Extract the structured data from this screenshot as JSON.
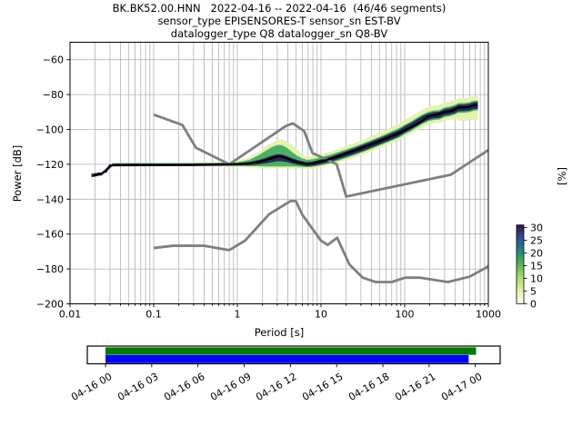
{
  "title": {
    "line1": "BK.BK52.00.HNN   2022-04-16 -- 2022-04-16  (46/46 segments)",
    "line2": "sensor_type EPISENSORES-T sensor_sn EST-BV",
    "line3": "datalogger_type Q8 datalogger_sn Q8-BV"
  },
  "axes": {
    "xlabel": "Period [s]",
    "ylabel": "Power [dB]",
    "right_label": "[%]",
    "x_ticks": [
      {
        "v": 0.01,
        "label": "0.01"
      },
      {
        "v": 0.1,
        "label": "0.1"
      },
      {
        "v": 1,
        "label": "1"
      },
      {
        "v": 10,
        "label": "10"
      },
      {
        "v": 100,
        "label": "100"
      },
      {
        "v": 1000,
        "label": "1000"
      }
    ],
    "y_ticks": [
      {
        "v": -60,
        "label": "−60"
      },
      {
        "v": -80,
        "label": "−80"
      },
      {
        "v": -100,
        "label": "−100"
      },
      {
        "v": -120,
        "label": "−120"
      },
      {
        "v": -140,
        "label": "−140"
      },
      {
        "v": -160,
        "label": "−160"
      },
      {
        "v": -180,
        "label": "−180"
      },
      {
        "v": -200,
        "label": "−200"
      }
    ],
    "xlim": [
      0.01,
      1000
    ],
    "ylim": [
      -200,
      -50
    ],
    "grid": true
  },
  "colorbar": {
    "ticks": [
      0,
      5,
      10,
      15,
      20,
      25,
      30
    ],
    "vmax": 31,
    "stops": [
      {
        "v": 0.0,
        "color": "#ffffff"
      },
      {
        "v": 2.0,
        "color": "#f6fad1"
      },
      {
        "v": 5.0,
        "color": "#e1f3ae"
      },
      {
        "v": 8.0,
        "color": "#c3e687"
      },
      {
        "v": 11.0,
        "color": "#9ed76f"
      },
      {
        "v": 14.0,
        "color": "#6fc05e"
      },
      {
        "v": 17.0,
        "color": "#41a85f"
      },
      {
        "v": 20.0,
        "color": "#2b8d74"
      },
      {
        "v": 23.0,
        "color": "#2a6f8e"
      },
      {
        "v": 26.0,
        "color": "#31508e"
      },
      {
        "v": 28.5,
        "color": "#343066"
      },
      {
        "v": 31.0,
        "color": "#35173f"
      }
    ]
  },
  "chart_data": {
    "type": "heatmap",
    "subtype": "ppsd_probability_density_with_noise_models",
    "title": "BK.BK52.00.HNN 2022-04-16 -- 2022-04-16 (46/46 segments)",
    "xlabel": "Period [s]",
    "ylabel": "Power [dB]",
    "zlabel": "[%]",
    "xlim": [
      0.01,
      1000
    ],
    "ylim": [
      -200,
      -50
    ],
    "zlim": [
      0,
      31
    ],
    "mode_line": [
      [
        0.019,
        -126.5
      ],
      [
        0.0205,
        -126.1
      ],
      [
        0.022,
        -125.3
      ],
      [
        0.0235,
        -125.7
      ],
      [
        0.025,
        -124.6
      ],
      [
        0.027,
        -124.1
      ],
      [
        0.0285,
        -122.3
      ],
      [
        0.03,
        -120.6
      ],
      [
        0.033,
        -120.4
      ],
      [
        0.05,
        -120.3
      ],
      [
        0.08,
        -120.3
      ],
      [
        0.13,
        -120.3
      ],
      [
        0.22,
        -120.3
      ],
      [
        0.38,
        -120.2
      ],
      [
        0.65,
        -120.1
      ],
      [
        1.0,
        -119.9
      ],
      [
        1.35,
        -119.5
      ],
      [
        1.75,
        -118.7
      ],
      [
        2.15,
        -117.7
      ],
      [
        2.55,
        -116.6
      ],
      [
        2.95,
        -115.6
      ],
      [
        3.35,
        -115.6
      ],
      [
        3.85,
        -116.4
      ],
      [
        4.4,
        -117.6
      ],
      [
        5.1,
        -118.6
      ],
      [
        5.9,
        -119.3
      ],
      [
        6.7,
        -119.8
      ],
      [
        7.7,
        -119.6
      ],
      [
        8.8,
        -119.0
      ],
      [
        10.2,
        -118.2
      ],
      [
        12.2,
        -117.2
      ],
      [
        14.5,
        -116.1
      ],
      [
        17.5,
        -114.8
      ],
      [
        21,
        -113.4
      ],
      [
        25.5,
        -112.0
      ],
      [
        31,
        -110.5
      ],
      [
        37,
        -109.1
      ],
      [
        45,
        -107.6
      ],
      [
        54,
        -106.1
      ],
      [
        65,
        -104.5
      ],
      [
        78,
        -102.9
      ],
      [
        94,
        -101.1
      ],
      [
        112,
        -99.3
      ],
      [
        135,
        -97.3
      ],
      [
        160,
        -95.3
      ],
      [
        185,
        -92.8
      ],
      [
        210,
        -92.0
      ],
      [
        245,
        -91.6
      ],
      [
        285,
        -90.4
      ],
      [
        305,
        -90.0
      ],
      [
        340,
        -89.7
      ],
      [
        375,
        -89.2
      ],
      [
        405,
        -88.4
      ],
      [
        425,
        -87.7
      ],
      [
        445,
        -87.4
      ],
      [
        510,
        -87.4
      ],
      [
        580,
        -87.2
      ],
      [
        625,
        -86.6
      ],
      [
        680,
        -86.2
      ],
      [
        745,
        -86.0
      ]
    ],
    "density_bands": [
      {
        "name": "outer-low-probability",
        "color": "#e3f2b2",
        "points": [
          [
            0.3,
            -121.2,
            -119.0
          ],
          [
            0.7,
            -121.3,
            -118.7
          ],
          [
            1.0,
            -121.6,
            -117.9
          ],
          [
            1.4,
            -121.8,
            -116.1
          ],
          [
            1.8,
            -122.0,
            -112.6
          ],
          [
            2.2,
            -122.2,
            -109.6
          ],
          [
            2.6,
            -122.3,
            -107.4
          ],
          [
            3.0,
            -122.3,
            -106.1
          ],
          [
            3.4,
            -122.3,
            -105.6
          ],
          [
            3.9,
            -122.3,
            -106.7
          ],
          [
            4.5,
            -122.3,
            -108.9
          ],
          [
            5.2,
            -122.4,
            -111.6
          ],
          [
            6.0,
            -122.5,
            -114.1
          ],
          [
            6.8,
            -122.6,
            -115.5
          ],
          [
            7.8,
            -122.4,
            -115.3
          ],
          [
            9.0,
            -121.9,
            -114.7
          ],
          [
            10.5,
            -121.3,
            -113.9
          ],
          [
            12.5,
            -120.5,
            -112.9
          ],
          [
            15,
            -119.4,
            -111.6
          ],
          [
            18,
            -118.3,
            -110.3
          ],
          [
            22,
            -117.0,
            -108.8
          ],
          [
            27,
            -115.6,
            -107.2
          ],
          [
            33,
            -114.1,
            -105.6
          ],
          [
            40,
            -112.6,
            -103.9
          ],
          [
            48,
            -111.1,
            -102.3
          ],
          [
            58,
            -109.5,
            -100.5
          ],
          [
            70,
            -107.9,
            -98.7
          ],
          [
            85,
            -106.2,
            -96.8
          ],
          [
            100,
            -104.3,
            -94.5
          ],
          [
            120,
            -102.4,
            -92.4
          ],
          [
            140,
            -100.5,
            -90.5
          ],
          [
            165,
            -98.6,
            -88.5
          ],
          [
            190,
            -97.3,
            -87.1
          ],
          [
            220,
            -96.5,
            -86.3
          ],
          [
            260,
            -96.2,
            -86.0
          ],
          [
            300,
            -94.9,
            -84.5
          ],
          [
            340,
            -94.5,
            -84.1
          ],
          [
            400,
            -94.0,
            -83.0
          ],
          [
            440,
            -95.0,
            -82.0
          ],
          [
            520,
            -95.0,
            -81.9
          ],
          [
            600,
            -94.8,
            -81.6
          ],
          [
            640,
            -94.6,
            -81.0
          ],
          [
            700,
            -94.5,
            -80.7
          ],
          [
            750,
            -94.4,
            -80.6
          ]
        ]
      },
      {
        "name": "mid-probability",
        "color": "#4fae63",
        "points": [
          [
            0.032,
            -120.9,
            -119.3
          ],
          [
            0.3,
            -120.9,
            -119.3
          ],
          [
            0.7,
            -120.9,
            -119.1
          ],
          [
            1.0,
            -120.9,
            -118.9
          ],
          [
            1.4,
            -121.0,
            -117.4
          ],
          [
            1.8,
            -121.1,
            -114.8
          ],
          [
            2.2,
            -121.2,
            -112.1
          ],
          [
            2.6,
            -121.2,
            -110.1
          ],
          [
            3.0,
            -121.2,
            -108.9
          ],
          [
            3.4,
            -121.2,
            -109.0
          ],
          [
            3.9,
            -121.2,
            -110.4
          ],
          [
            4.5,
            -121.2,
            -112.9
          ],
          [
            5.2,
            -121.3,
            -115.1
          ],
          [
            6.0,
            -121.5,
            -116.7
          ],
          [
            6.8,
            -121.6,
            -117.4
          ],
          [
            7.8,
            -121.4,
            -117.1
          ],
          [
            9.0,
            -121.0,
            -116.5
          ],
          [
            10.5,
            -120.4,
            -115.7
          ],
          [
            12.5,
            -119.5,
            -114.7
          ],
          [
            15,
            -118.3,
            -113.5
          ],
          [
            18,
            -117.1,
            -112.2
          ],
          [
            22,
            -115.7,
            -110.8
          ],
          [
            27,
            -114.2,
            -109.3
          ],
          [
            33,
            -112.7,
            -107.7
          ],
          [
            40,
            -111.1,
            -106.1
          ],
          [
            48,
            -109.6,
            -104.6
          ],
          [
            58,
            -108.0,
            -102.9
          ],
          [
            70,
            -106.4,
            -101.1
          ],
          [
            85,
            -104.7,
            -99.3
          ],
          [
            100,
            -102.8,
            -97.3
          ],
          [
            120,
            -100.8,
            -95.3
          ],
          [
            140,
            -98.8,
            -93.3
          ],
          [
            165,
            -96.8,
            -91.3
          ],
          [
            190,
            -95.4,
            -90.0
          ],
          [
            220,
            -94.6,
            -89.2
          ],
          [
            260,
            -94.3,
            -88.9
          ],
          [
            300,
            -92.9,
            -87.4
          ],
          [
            340,
            -92.5,
            -87.0
          ],
          [
            400,
            -91.5,
            -85.9
          ],
          [
            440,
            -90.5,
            -84.9
          ],
          [
            520,
            -90.4,
            -84.8
          ],
          [
            600,
            -90.1,
            -84.4
          ],
          [
            640,
            -89.5,
            -83.8
          ],
          [
            700,
            -89.2,
            -83.5
          ],
          [
            750,
            -89.1,
            -83.4
          ]
        ]
      },
      {
        "name": "high-probability-core",
        "color": "#222c54",
        "points": [
          [
            0.018,
            -127.4,
            -125.3
          ],
          [
            0.024,
            -126.3,
            -124.6
          ],
          [
            0.028,
            -123.4,
            -121.6
          ],
          [
            0.032,
            -121.2,
            -119.8
          ],
          [
            0.3,
            -121.0,
            -119.7
          ],
          [
            1.0,
            -120.7,
            -119.2
          ],
          [
            1.4,
            -120.5,
            -118.7
          ],
          [
            1.8,
            -120.0,
            -117.5
          ],
          [
            2.2,
            -119.4,
            -116.2
          ],
          [
            2.6,
            -118.8,
            -115.0
          ],
          [
            3.0,
            -118.2,
            -114.2
          ],
          [
            3.4,
            -118.2,
            -114.3
          ],
          [
            3.9,
            -118.7,
            -115.3
          ],
          [
            4.5,
            -119.5,
            -116.5
          ],
          [
            5.2,
            -120.2,
            -117.5
          ],
          [
            6.0,
            -120.7,
            -118.3
          ],
          [
            6.8,
            -121.0,
            -118.8
          ],
          [
            7.8,
            -120.8,
            -118.5
          ],
          [
            9.0,
            -120.3,
            -117.8
          ],
          [
            10.5,
            -119.6,
            -116.9
          ],
          [
            12.5,
            -118.7,
            -115.9
          ],
          [
            15,
            -117.5,
            -114.6
          ],
          [
            18,
            -116.3,
            -113.2
          ],
          [
            22,
            -114.9,
            -111.7
          ],
          [
            27,
            -113.5,
            -110.1
          ],
          [
            33,
            -112.0,
            -108.5
          ],
          [
            40,
            -110.4,
            -106.9
          ],
          [
            48,
            -108.9,
            -105.4
          ],
          [
            58,
            -107.3,
            -103.7
          ],
          [
            70,
            -105.7,
            -102.0
          ],
          [
            85,
            -104.0,
            -100.3
          ],
          [
            100,
            -101.9,
            -98.2
          ],
          [
            120,
            -99.9,
            -96.2
          ],
          [
            140,
            -97.9,
            -94.2
          ],
          [
            165,
            -95.9,
            -92.2
          ],
          [
            190,
            -94.5,
            -90.9
          ],
          [
            220,
            -93.7,
            -90.1
          ],
          [
            260,
            -93.4,
            -89.8
          ],
          [
            300,
            -92.0,
            -88.3
          ],
          [
            340,
            -91.6,
            -87.9
          ],
          [
            400,
            -90.6,
            -86.8
          ],
          [
            440,
            -89.6,
            -85.8
          ],
          [
            520,
            -89.5,
            -85.7
          ],
          [
            600,
            -89.2,
            -85.3
          ],
          [
            640,
            -88.6,
            -84.7
          ],
          [
            700,
            -88.3,
            -84.4
          ],
          [
            750,
            -88.2,
            -84.3
          ]
        ]
      }
    ],
    "noise_models": {
      "nhnm": [
        [
          0.1,
          -91.5
        ],
        [
          0.22,
          -97.4
        ],
        [
          0.32,
          -110.5
        ],
        [
          0.8,
          -120.0
        ],
        [
          3.8,
          -98.0
        ],
        [
          4.6,
          -96.5
        ],
        [
          6.3,
          -101.0
        ],
        [
          7.9,
          -113.5
        ],
        [
          15.4,
          -120.0
        ],
        [
          20,
          -138.5
        ],
        [
          354.8,
          -126.0
        ],
        [
          1000,
          -111.8
        ]
      ],
      "nlnm": [
        [
          0.1,
          -168.0
        ],
        [
          0.17,
          -166.7
        ],
        [
          0.4,
          -166.7
        ],
        [
          0.8,
          -169.2
        ],
        [
          1.24,
          -163.7
        ],
        [
          2.4,
          -148.6
        ],
        [
          4.3,
          -141.1
        ],
        [
          5,
          -141.1
        ],
        [
          6,
          -149.0
        ],
        [
          10,
          -163.8
        ],
        [
          12,
          -166.2
        ],
        [
          15.6,
          -162.1
        ],
        [
          21.9,
          -177.5
        ],
        [
          31.6,
          -185.0
        ],
        [
          45,
          -187.5
        ],
        [
          70,
          -187.5
        ],
        [
          101,
          -185.0
        ],
        [
          154,
          -185.0
        ],
        [
          328,
          -187.5
        ],
        [
          600,
          -184.4
        ],
        [
          1000,
          -178.5
        ]
      ]
    },
    "colors": {
      "mode_line": "#000000",
      "noise_model": "#7f7f7f",
      "grid": "#b2b2b2",
      "timeline_top": "#007a00",
      "timeline_bottom": "#0000ff"
    },
    "timeline": {
      "tick_labels": [
        "04-16 00",
        "04-16 03",
        "04-16 06",
        "04-16 09",
        "04-16 12",
        "04-16 15",
        "04-16 18",
        "04-16 21",
        "04-17 00"
      ],
      "bars": [
        {
          "name": "extent-bar",
          "color": "#007a00",
          "from": 0.0,
          "to": 1.002
        },
        {
          "name": "coverage-bar",
          "color": "#0000ff",
          "from": 0.0,
          "to": 0.982
        }
      ]
    }
  }
}
